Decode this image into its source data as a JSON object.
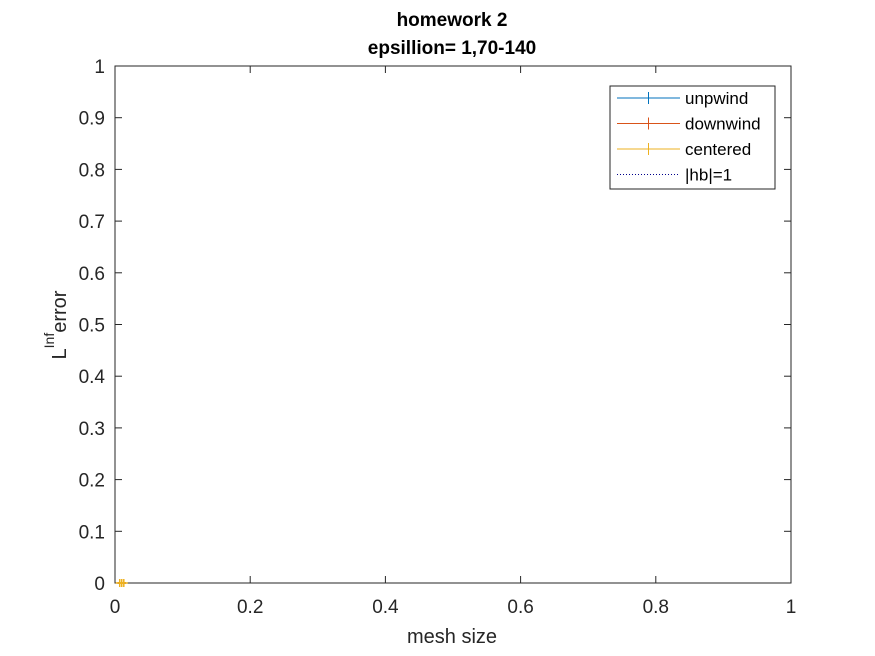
{
  "chart_data": {
    "type": "line",
    "title": "homework 2",
    "subtitle": "epsillion= 1,70-140",
    "xlabel": "mesh size",
    "ylabel_main": "L",
    "ylabel_super": "Inf",
    "ylabel_rest": "error",
    "xlim": [
      0,
      1
    ],
    "ylim": [
      0,
      1
    ],
    "xticks": [
      "0",
      "0.2",
      "0.4",
      "0.6",
      "0.8",
      "1"
    ],
    "yticks": [
      "0",
      "0.1",
      "0.2",
      "0.3",
      "0.4",
      "0.5",
      "0.6",
      "0.7",
      "0.8",
      "0.9",
      "1"
    ],
    "grid": false,
    "legend_position": "top-right",
    "series": [
      {
        "name": "unpwind",
        "color": "#0072BD",
        "marker": "plus",
        "style": "solid",
        "x": [
          0.01,
          0.01,
          0.01
        ],
        "y": [
          0.0,
          0.0,
          0.0
        ]
      },
      {
        "name": "downwind",
        "color": "#D95319",
        "marker": "plus",
        "style": "solid",
        "x": [
          0.01,
          0.01,
          0.01
        ],
        "y": [
          0.0,
          0.0,
          0.0
        ]
      },
      {
        "name": "centered",
        "color": "#EDB120",
        "marker": "plus",
        "style": "solid",
        "x": [
          0.007,
          0.01,
          0.013
        ],
        "y": [
          0.0,
          0.0,
          0.0
        ]
      },
      {
        "name": "|hb|=1",
        "color": "#00008B",
        "marker": "none",
        "style": "dotted",
        "x": [],
        "y": []
      }
    ]
  }
}
